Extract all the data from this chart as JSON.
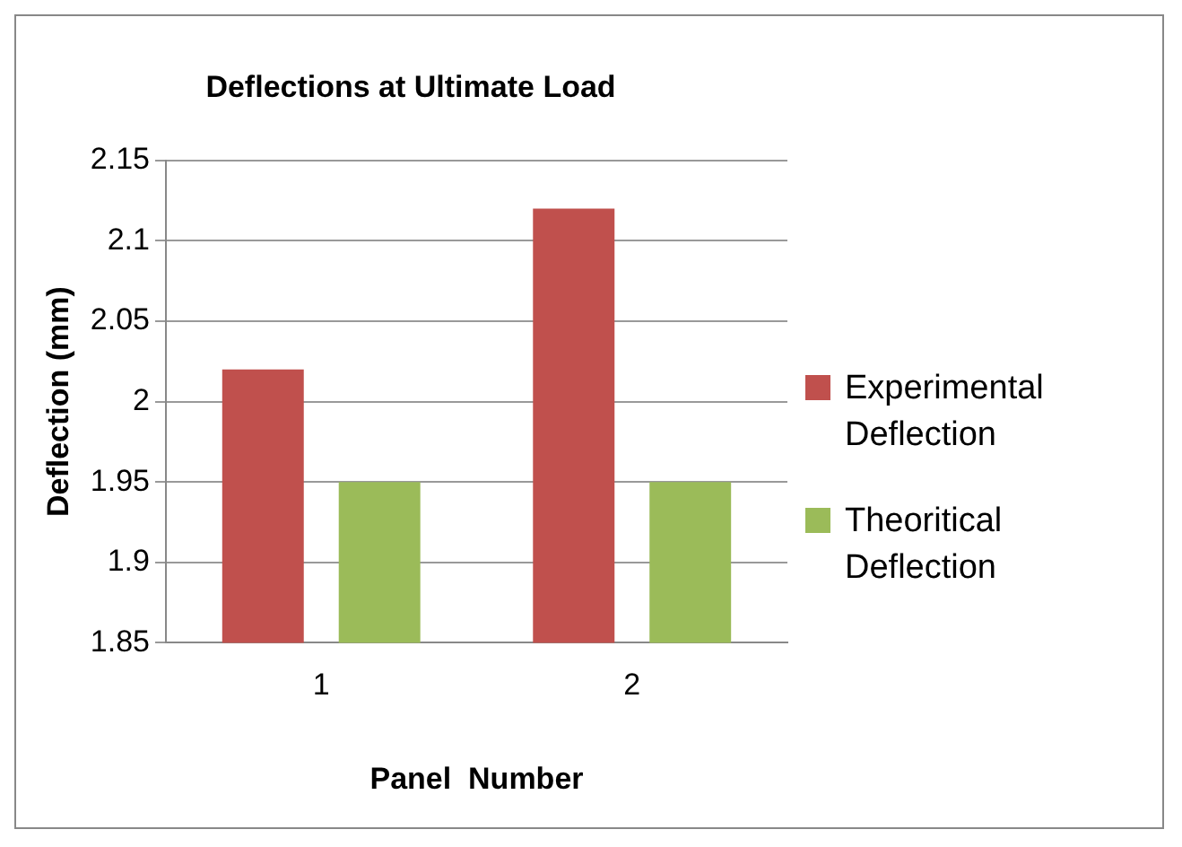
{
  "chart_data": {
    "type": "bar",
    "title": "Deflections at Ultimate Load",
    "xlabel": "Panel  Number",
    "ylabel": "Deflection (mm)",
    "categories": [
      "1",
      "2"
    ],
    "series": [
      {
        "name": "Experimental Deflection",
        "color": "#c0504d",
        "values": [
          2.02,
          2.12
        ]
      },
      {
        "name": "Theoritical Deflection",
        "color": "#9bbb59",
        "values": [
          1.95,
          1.95
        ]
      }
    ],
    "ylim": [
      1.85,
      2.15
    ],
    "yticks": [
      1.85,
      1.9,
      1.95,
      2,
      2.05,
      2.1,
      2.15
    ],
    "grid": "y",
    "legend": "right"
  }
}
